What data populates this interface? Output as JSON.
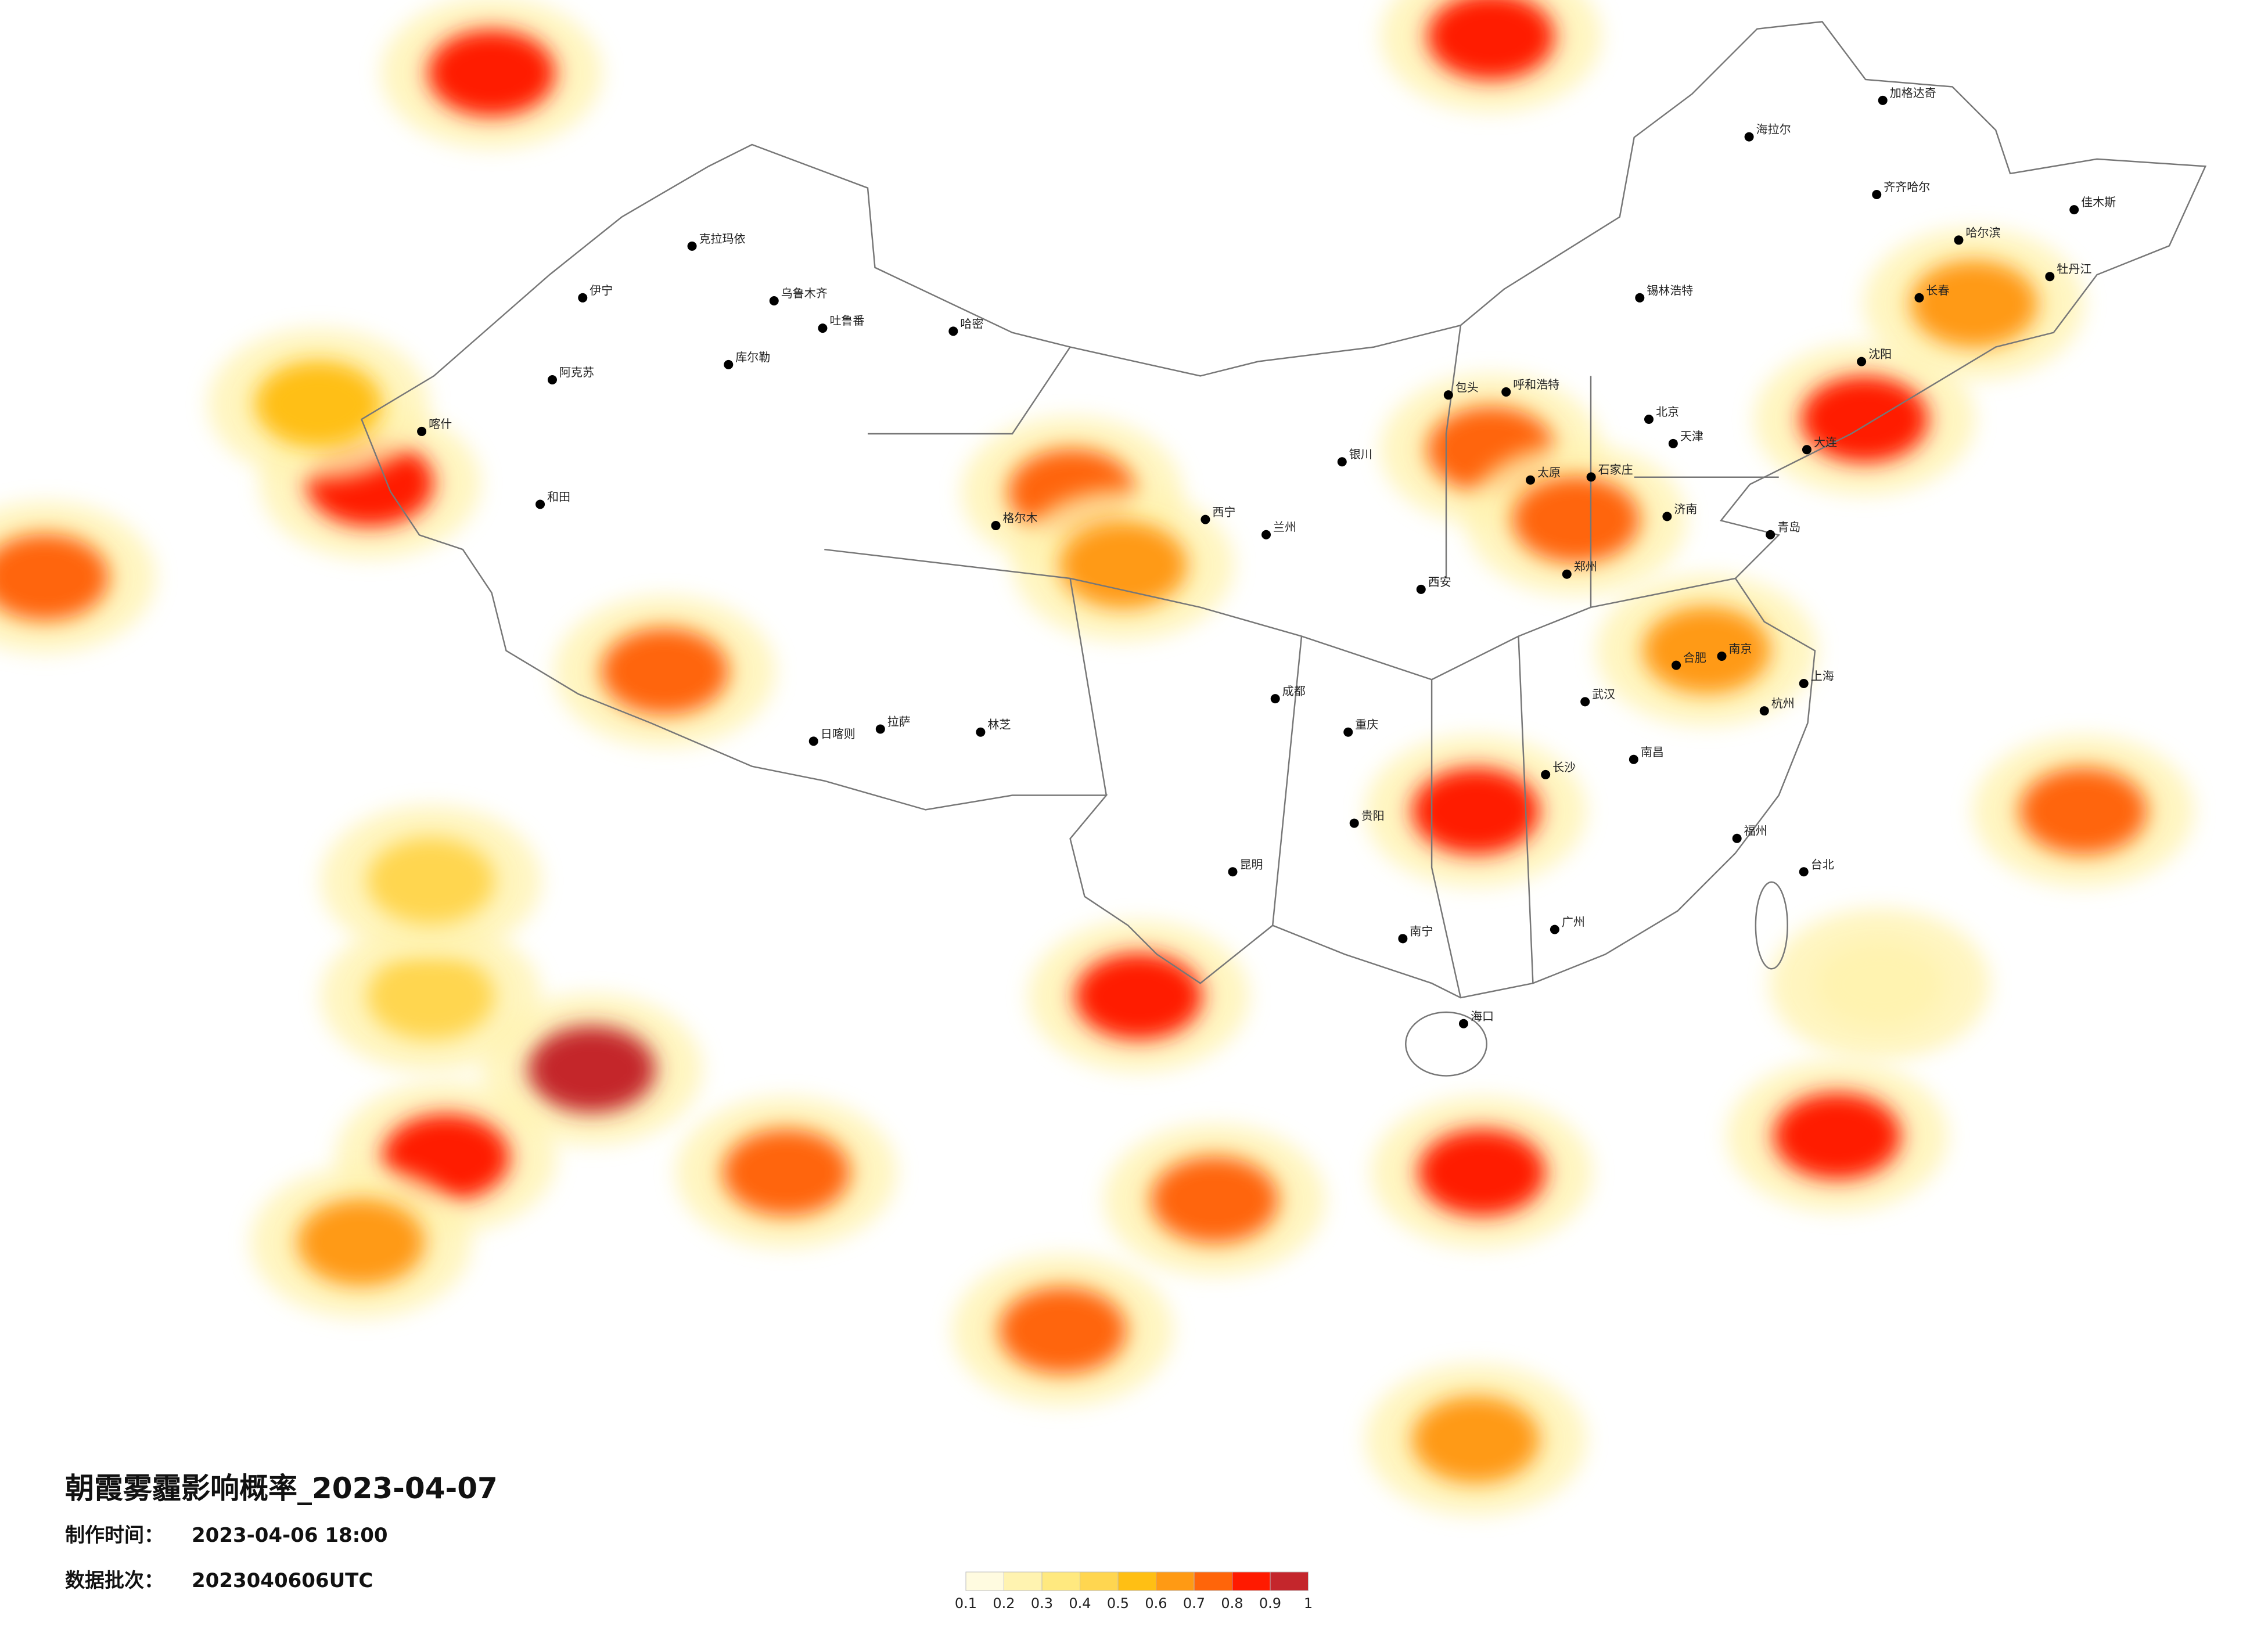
{
  "title": "朝霞雾霾影响概率_2023-04-07",
  "made_label": "制作时间：",
  "made_time": "2023-04-06 18:00",
  "batch_label": "数据批次：",
  "batch": "2023040606UTC",
  "colorbar": {
    "ticks": [
      0.1,
      0.2,
      0.3,
      0.4,
      0.5,
      0.6,
      0.7,
      0.8,
      0.9,
      1
    ],
    "colors": [
      "#fffbe0",
      "#fff3b0",
      "#ffe97f",
      "#ffd650",
      "#ffbf14",
      "#ff9a14",
      "#ff650a",
      "#ff1a00",
      "#c4262c"
    ]
  },
  "hotspots": [
    {
      "lon": 78.3,
      "lat": 51.3,
      "value": 0.9
    },
    {
      "lon": 111.2,
      "lat": 52.5,
      "value": 0.9
    },
    {
      "lon": 97.4,
      "lat": 37.5,
      "value": 0.8
    },
    {
      "lon": 99.1,
      "lat": 35.1,
      "value": 0.7
    },
    {
      "lon": 123.5,
      "lat": 39.9,
      "value": 0.9
    },
    {
      "lon": 127.1,
      "lat": 43.7,
      "value": 0.7
    },
    {
      "lon": 111.2,
      "lat": 38.9,
      "value": 0.8
    },
    {
      "lon": 114.0,
      "lat": 36.6,
      "value": 0.8
    },
    {
      "lon": 110.7,
      "lat": 27.0,
      "value": 0.9
    },
    {
      "lon": 118.3,
      "lat": 32.3,
      "value": 0.7
    },
    {
      "lon": 110.9,
      "lat": 15.1,
      "value": 0.9
    },
    {
      "lon": 81.6,
      "lat": 18.5,
      "value": 1
    },
    {
      "lon": 76.8,
      "lat": 15.6,
      "value": 0.9
    },
    {
      "lon": 99.6,
      "lat": 20.9,
      "value": 0.9
    },
    {
      "lon": 76.3,
      "lat": 20.9,
      "value": 0.5
    },
    {
      "lon": 102.1,
      "lat": 14.2,
      "value": 0.8
    },
    {
      "lon": 110.7,
      "lat": 6.3,
      "value": 0.7
    },
    {
      "lon": 97.1,
      "lat": 9.9,
      "value": 0.8
    },
    {
      "lon": 130.7,
      "lat": 27.0,
      "value": 0.8
    },
    {
      "lon": 74.3,
      "lat": 37.8,
      "value": 0.9
    },
    {
      "lon": 63.6,
      "lat": 34.7,
      "value": 0.8
    },
    {
      "lon": 88.0,
      "lat": 15.1,
      "value": 0.8
    },
    {
      "lon": 76.3,
      "lat": 24.7,
      "value": 0.5
    },
    {
      "lon": 124.0,
      "lat": 21.3,
      "value": 0.3
    },
    {
      "lon": 84.0,
      "lat": 31.6,
      "value": 0.8
    },
    {
      "lon": 122.6,
      "lat": 16.3,
      "value": 0.9
    },
    {
      "lon": 74.0,
      "lat": 12.8,
      "value": 0.7
    },
    {
      "lon": 72.6,
      "lat": 40.4,
      "value": 0.6
    }
  ],
  "cities": [
    {
      "name": "乌鲁木齐",
      "lon": 87.6,
      "lat": 43.8
    },
    {
      "name": "喀什",
      "lon": 76.0,
      "lat": 39.5
    },
    {
      "name": "和田",
      "lon": 79.9,
      "lat": 37.1
    },
    {
      "name": "伊宁",
      "lon": 81.3,
      "lat": 43.9
    },
    {
      "name": "阿克苏",
      "lon": 80.3,
      "lat": 41.2
    },
    {
      "name": "库尔勒",
      "lon": 86.1,
      "lat": 41.7
    },
    {
      "name": "哈密",
      "lon": 93.5,
      "lat": 42.8
    },
    {
      "name": "吐鲁番",
      "lon": 89.2,
      "lat": 42.9
    },
    {
      "name": "克拉玛依",
      "lon": 84.9,
      "lat": 45.6
    },
    {
      "name": "格尔木",
      "lon": 94.9,
      "lat": 36.4
    },
    {
      "name": "拉萨",
      "lon": 91.1,
      "lat": 29.7
    },
    {
      "name": "日喀则",
      "lon": 88.9,
      "lat": 29.3
    },
    {
      "name": "林芝",
      "lon": 94.4,
      "lat": 29.6
    },
    {
      "name": "西宁",
      "lon": 101.8,
      "lat": 36.6
    },
    {
      "name": "兰州",
      "lon": 103.8,
      "lat": 36.1
    },
    {
      "name": "银川",
      "lon": 106.3,
      "lat": 38.5
    },
    {
      "name": "呼和浩特",
      "lon": 111.7,
      "lat": 40.8
    },
    {
      "name": "包头",
      "lon": 109.8,
      "lat": 40.7
    },
    {
      "name": "太原",
      "lon": 112.5,
      "lat": 37.9
    },
    {
      "name": "石家庄",
      "lon": 114.5,
      "lat": 38.0
    },
    {
      "name": "北京",
      "lon": 116.4,
      "lat": 39.9
    },
    {
      "name": "天津",
      "lon": 117.2,
      "lat": 39.1
    },
    {
      "name": "济南",
      "lon": 117.0,
      "lat": 36.7
    },
    {
      "name": "郑州",
      "lon": 113.7,
      "lat": 34.8
    },
    {
      "name": "西安",
      "lon": 108.9,
      "lat": 34.3
    },
    {
      "name": "成都",
      "lon": 104.1,
      "lat": 30.7
    },
    {
      "name": "重庆",
      "lon": 106.5,
      "lat": 29.6
    },
    {
      "name": "贵阳",
      "lon": 106.7,
      "lat": 26.6
    },
    {
      "name": "昆明",
      "lon": 102.7,
      "lat": 25.0
    },
    {
      "name": "南宁",
      "lon": 108.3,
      "lat": 22.8
    },
    {
      "name": "广州",
      "lon": 113.3,
      "lat": 23.1
    },
    {
      "name": "长沙",
      "lon": 113.0,
      "lat": 28.2
    },
    {
      "name": "武汉",
      "lon": 114.3,
      "lat": 30.6
    },
    {
      "name": "南昌",
      "lon": 115.9,
      "lat": 28.7
    },
    {
      "name": "合肥",
      "lon": 117.3,
      "lat": 31.8
    },
    {
      "name": "南京",
      "lon": 118.8,
      "lat": 32.1
    },
    {
      "name": "杭州",
      "lon": 120.2,
      "lat": 30.3
    },
    {
      "name": "上海",
      "lon": 121.5,
      "lat": 31.2
    },
    {
      "name": "福州",
      "lon": 119.3,
      "lat": 26.1
    },
    {
      "name": "台北",
      "lon": 121.5,
      "lat": 25.0
    },
    {
      "name": "海口",
      "lon": 110.3,
      "lat": 20.0
    },
    {
      "name": "沈阳",
      "lon": 123.4,
      "lat": 41.8
    },
    {
      "name": "长春",
      "lon": 125.3,
      "lat": 43.9
    },
    {
      "name": "哈尔滨",
      "lon": 126.6,
      "lat": 45.8
    },
    {
      "name": "齐齐哈尔",
      "lon": 123.9,
      "lat": 47.3
    },
    {
      "name": "海拉尔",
      "lon": 119.7,
      "lat": 49.2
    },
    {
      "name": "大连",
      "lon": 121.6,
      "lat": 38.9
    },
    {
      "name": "青岛",
      "lon": 120.4,
      "lat": 36.1
    },
    {
      "name": "锡林浩特",
      "lon": 116.1,
      "lat": 43.9
    },
    {
      "name": "佳木斯",
      "lon": 130.4,
      "lat": 46.8
    },
    {
      "name": "牡丹江",
      "lon": 129.6,
      "lat": 44.6
    },
    {
      "name": "加格达奇",
      "lon": 124.1,
      "lat": 50.4
    }
  ]
}
